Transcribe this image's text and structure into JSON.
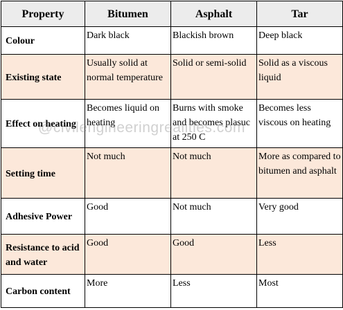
{
  "table": {
    "header": [
      "Property",
      "Bitumen",
      "Asphalt",
      "Tar"
    ],
    "rows": [
      [
        "Colour",
        "Dark black",
        "Blackish brown",
        "Deep black"
      ],
      [
        "Existing state",
        "Usually solid at normal temperature",
        "Solid or semi-solid",
        "Solid as a viscous liquid"
      ],
      [
        "Effect on heating",
        "Becomes liquid on heating",
        "Burns with smoke and becomes plasuc at 250 C",
        "Becomes less viscous on heating"
      ],
      [
        "Setting time",
        "Not much",
        "Not much",
        "More as compared to bitumen and asphalt"
      ],
      [
        "Adhesive Power",
        "Good",
        "Not much",
        "Very good"
      ],
      [
        "Resistance to acid and water",
        "Good",
        "Good",
        "Less"
      ],
      [
        "Carbon content",
        "More",
        "Less",
        "Most"
      ]
    ]
  },
  "watermark": "@civilengineeringrealities.com"
}
